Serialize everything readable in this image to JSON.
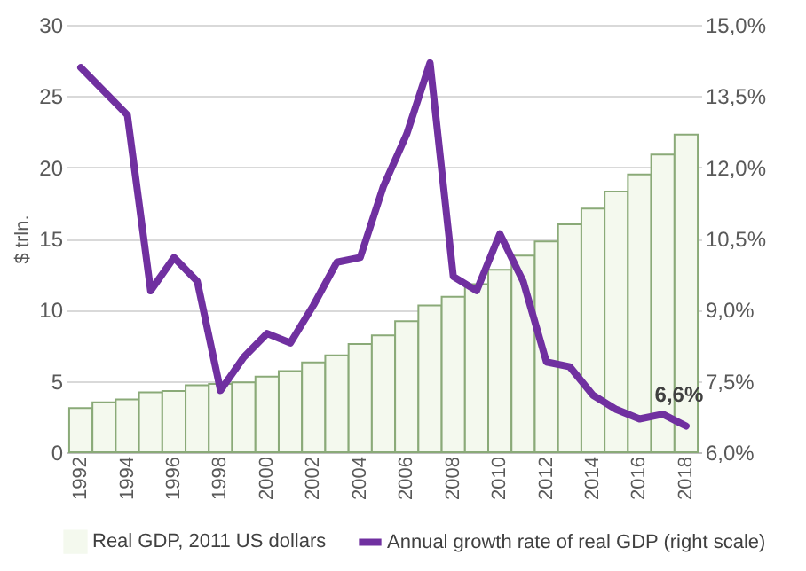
{
  "chart_data": {
    "type": "bar",
    "ylabel": "$ trln.",
    "categories": [
      "1992",
      null,
      "1994",
      null,
      "1996",
      null,
      "1998",
      null,
      "2000",
      null,
      "2002",
      null,
      "2004",
      null,
      "2006",
      null,
      "2008",
      null,
      "2010",
      null,
      "2012",
      null,
      "2014",
      null,
      "2016",
      null,
      "2018"
    ],
    "series": [
      {
        "name": "Real GDP, 2011 US dollars",
        "color": "#f4f9ee",
        "values": [
          3.1,
          3.5,
          3.7,
          4.2,
          4.3,
          4.7,
          4.8,
          4.9,
          5.3,
          5.7,
          6.3,
          6.8,
          7.6,
          8.2,
          9.2,
          10.3,
          10.9,
          11.8,
          12.8,
          13.8,
          14.8,
          16.0,
          17.1,
          18.3,
          19.5,
          20.9,
          22.3
        ]
      },
      {
        "name": "Annual growth rate of real GDP (right scale)",
        "type": "line",
        "axis": "y2",
        "color": "#7030a0",
        "values": [
          14.1,
          13.6,
          13.1,
          9.4,
          10.1,
          9.6,
          7.3,
          8.0,
          8.5,
          8.3,
          9.1,
          10.0,
          10.1,
          11.6,
          12.7,
          14.2,
          9.7,
          9.4,
          10.6,
          9.6,
          7.9,
          7.8,
          7.2,
          6.9,
          6.7,
          6.8,
          6.55
        ],
        "value_labels": [
          null,
          null,
          null,
          null,
          null,
          null,
          null,
          null,
          null,
          null,
          null,
          null,
          null,
          null,
          null,
          null,
          null,
          null,
          null,
          null,
          null,
          null,
          null,
          null,
          null,
          null,
          "6,6%"
        ]
      }
    ],
    "ylim": [
      0,
      30
    ],
    "yticks": [
      0,
      5,
      10,
      15,
      20,
      25,
      30
    ],
    "y2lim": [
      6,
      15
    ],
    "y2ticks": [
      {
        "value": 6,
        "label": "6,0%"
      },
      {
        "value": 7.5,
        "label": "7,5%"
      },
      {
        "value": 9,
        "label": "9,0%"
      },
      {
        "value": 10.5,
        "label": "10,5%"
      },
      {
        "value": 12,
        "label": "12,0%"
      },
      {
        "value": 13.5,
        "label": "13,5%"
      },
      {
        "value": 15,
        "label": "15,0%"
      }
    ],
    "grid": "y",
    "legend": "bottom"
  }
}
